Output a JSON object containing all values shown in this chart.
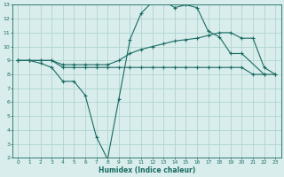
{
  "xlabel": "Humidex (Indice chaleur)",
  "background_color": "#d8edec",
  "grid_color": "#b0d4d0",
  "line_color": "#1a6b63",
  "xlim": [
    -0.5,
    23.5
  ],
  "ylim": [
    2,
    13
  ],
  "xticks": [
    0,
    1,
    2,
    3,
    4,
    5,
    6,
    7,
    8,
    9,
    10,
    11,
    12,
    13,
    14,
    15,
    16,
    17,
    18,
    19,
    20,
    21,
    22,
    23
  ],
  "yticks": [
    2,
    3,
    4,
    5,
    6,
    7,
    8,
    9,
    10,
    11,
    12,
    13
  ],
  "line1_x": [
    0,
    1,
    2,
    3,
    4,
    5,
    6,
    7,
    8,
    9,
    10,
    11,
    12,
    13,
    14,
    15,
    16,
    17,
    18,
    19,
    20,
    22
  ],
  "line1_y": [
    9,
    9,
    8.8,
    8.5,
    7.5,
    7.5,
    6.5,
    3.5,
    1.9,
    6.2,
    10.5,
    12.4,
    13.2,
    13.3,
    12.8,
    13.0,
    12.8,
    11.1,
    10.7,
    9.5,
    9.5,
    8.0
  ],
  "line2_x": [
    0,
    1,
    2,
    3,
    4,
    5,
    6,
    7,
    8,
    9,
    10,
    11,
    12,
    13,
    14,
    15,
    16,
    17,
    18,
    19,
    20,
    21,
    22,
    23
  ],
  "line2_y": [
    9,
    9,
    9,
    9,
    8.7,
    8.7,
    8.7,
    8.7,
    8.7,
    9.0,
    9.5,
    9.8,
    10.0,
    10.2,
    10.4,
    10.5,
    10.6,
    10.8,
    11.0,
    11.0,
    10.6,
    10.6,
    8.5,
    8.0
  ],
  "line3_x": [
    0,
    1,
    2,
    3,
    4,
    5,
    6,
    7,
    8,
    9,
    10,
    11,
    12,
    13,
    14,
    15,
    16,
    17,
    18,
    19,
    20,
    21,
    22,
    23
  ],
  "line3_y": [
    9,
    9,
    9,
    9,
    8.5,
    8.5,
    8.5,
    8.5,
    8.5,
    8.5,
    8.5,
    8.5,
    8.5,
    8.5,
    8.5,
    8.5,
    8.5,
    8.5,
    8.5,
    8.5,
    8.5,
    8.0,
    8.0,
    8.0
  ]
}
